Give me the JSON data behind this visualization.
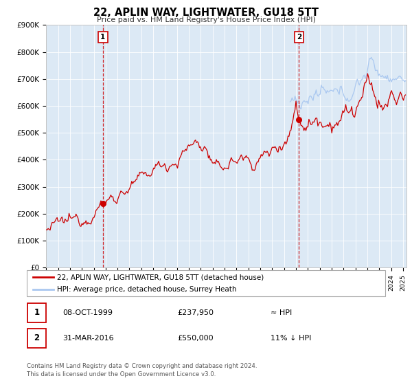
{
  "title": "22, APLIN WAY, LIGHTWATER, GU18 5TT",
  "subtitle": "Price paid vs. HM Land Registry's House Price Index (HPI)",
  "ylim": [
    0,
    900000
  ],
  "xlim_start": 1995.0,
  "xlim_end": 2025.3,
  "bg_color": "#dce9f5",
  "line1_color": "#cc0000",
  "line2_color": "#aac8f0",
  "marker1_date": 1999.77,
  "marker1_value": 237950,
  "marker2_date": 2016.25,
  "marker2_value": 550000,
  "vline1_date": 1999.77,
  "vline2_date": 2016.25,
  "label1_value": 855000,
  "label2_value": 855000,
  "legend_line1": "22, APLIN WAY, LIGHTWATER, GU18 5TT (detached house)",
  "legend_line2": "HPI: Average price, detached house, Surrey Heath",
  "table_row1_num": "1",
  "table_row1_date": "08-OCT-1999",
  "table_row1_price": "£237,950",
  "table_row1_hpi": "≈ HPI",
  "table_row2_num": "2",
  "table_row2_date": "31-MAR-2016",
  "table_row2_price": "£550,000",
  "table_row2_hpi": "11% ↓ HPI",
  "footer1": "Contains HM Land Registry data © Crown copyright and database right 2024.",
  "footer2": "This data is licensed under the Open Government Licence v3.0.",
  "yticks": [
    0,
    100000,
    200000,
    300000,
    400000,
    500000,
    600000,
    700000,
    800000,
    900000
  ],
  "ytick_labels": [
    "£0",
    "£100K",
    "£200K",
    "£300K",
    "£400K",
    "£500K",
    "£600K",
    "£700K",
    "£800K",
    "£900K"
  ],
  "blue_start_year": 2015.5
}
